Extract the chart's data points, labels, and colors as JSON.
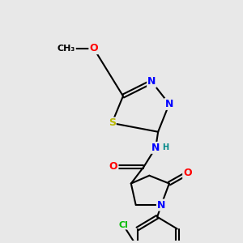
{
  "bg_color": "#e8e8e8",
  "atom_colors": {
    "C": "#000000",
    "N": "#0000ff",
    "O": "#ff0000",
    "S": "#b8b800",
    "Cl": "#00bb00",
    "H": "#008888"
  },
  "bond_color": "#000000",
  "bond_width": 1.5,
  "font_size": 9,
  "fig_size": [
    3.0,
    3.0
  ],
  "dpi": 100
}
